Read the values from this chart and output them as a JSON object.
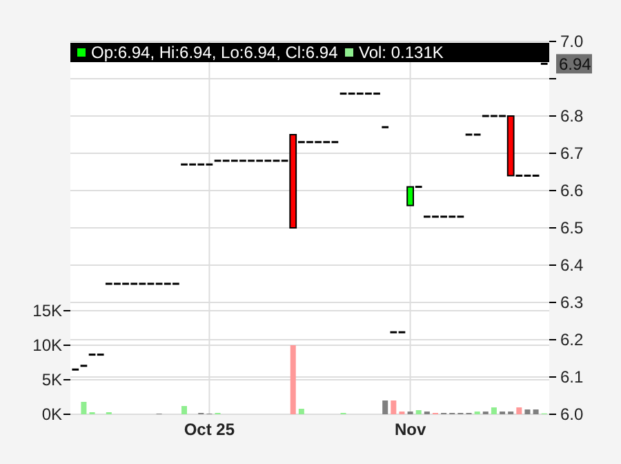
{
  "chart_data": {
    "type": "candlestick",
    "categories": [
      null,
      null,
      null,
      null,
      null,
      null,
      null,
      null,
      null,
      null,
      null,
      null,
      null,
      null,
      null,
      null,
      "Oct 25",
      null,
      null,
      null,
      null,
      null,
      null,
      null,
      null,
      null,
      null,
      null,
      null,
      null,
      null,
      null,
      null,
      null,
      null,
      null,
      null,
      null,
      null,
      null,
      "Nov",
      null,
      null,
      null,
      null,
      null,
      null,
      null,
      null,
      null,
      null,
      null,
      null,
      null,
      null,
      null,
      null
    ],
    "ohlc": [
      [
        6.12,
        6.12,
        6.12,
        6.12
      ],
      [
        6.13,
        6.13,
        6.13,
        6.13
      ],
      [
        6.16,
        6.16,
        6.16,
        6.16
      ],
      [
        6.16,
        6.16,
        6.16,
        6.16
      ],
      [
        6.35,
        6.35,
        6.35,
        6.35
      ],
      [
        6.35,
        6.35,
        6.35,
        6.35
      ],
      [
        6.35,
        6.35,
        6.35,
        6.35
      ],
      [
        6.35,
        6.35,
        6.35,
        6.35
      ],
      [
        6.35,
        6.35,
        6.35,
        6.35
      ],
      [
        6.35,
        6.35,
        6.35,
        6.35
      ],
      [
        6.35,
        6.35,
        6.35,
        6.35
      ],
      [
        6.35,
        6.35,
        6.35,
        6.35
      ],
      [
        6.35,
        6.35,
        6.35,
        6.35
      ],
      [
        6.67,
        6.67,
        6.67,
        6.67
      ],
      [
        6.67,
        6.67,
        6.67,
        6.67
      ],
      [
        6.67,
        6.67,
        6.67,
        6.67
      ],
      [
        6.67,
        6.67,
        6.67,
        6.67
      ],
      [
        6.68,
        6.68,
        6.68,
        6.68
      ],
      [
        6.68,
        6.68,
        6.68,
        6.68
      ],
      [
        6.68,
        6.68,
        6.68,
        6.68
      ],
      [
        6.68,
        6.68,
        6.68,
        6.68
      ],
      [
        6.68,
        6.68,
        6.68,
        6.68
      ],
      [
        6.68,
        6.68,
        6.68,
        6.68
      ],
      [
        6.68,
        6.68,
        6.68,
        6.68
      ],
      [
        6.68,
        6.68,
        6.68,
        6.68
      ],
      [
        6.68,
        6.68,
        6.68,
        6.68
      ],
      [
        6.75,
        6.75,
        6.5,
        6.5
      ],
      [
        6.73,
        6.73,
        6.73,
        6.73
      ],
      [
        6.73,
        6.73,
        6.73,
        6.73
      ],
      [
        6.73,
        6.73,
        6.73,
        6.73
      ],
      [
        6.73,
        6.73,
        6.73,
        6.73
      ],
      [
        6.73,
        6.73,
        6.73,
        6.73
      ],
      [
        6.86,
        6.86,
        6.86,
        6.86
      ],
      [
        6.86,
        6.86,
        6.86,
        6.86
      ],
      [
        6.86,
        6.86,
        6.86,
        6.86
      ],
      [
        6.86,
        6.86,
        6.86,
        6.86
      ],
      [
        6.86,
        6.86,
        6.86,
        6.86
      ],
      [
        6.77,
        6.77,
        6.77,
        6.77
      ],
      [
        6.22,
        6.22,
        6.22,
        6.22
      ],
      [
        6.22,
        6.22,
        6.22,
        6.22
      ],
      [
        6.56,
        6.61,
        6.56,
        6.61
      ],
      [
        6.61,
        6.61,
        6.61,
        6.61
      ],
      [
        6.53,
        6.53,
        6.53,
        6.53
      ],
      [
        6.53,
        6.53,
        6.53,
        6.53
      ],
      [
        6.53,
        6.53,
        6.53,
        6.53
      ],
      [
        6.53,
        6.53,
        6.53,
        6.53
      ],
      [
        6.53,
        6.53,
        6.53,
        6.53
      ],
      [
        6.75,
        6.75,
        6.75,
        6.75
      ],
      [
        6.75,
        6.75,
        6.75,
        6.75
      ],
      [
        6.8,
        6.8,
        6.8,
        6.8
      ],
      [
        6.8,
        6.8,
        6.8,
        6.8
      ],
      [
        6.8,
        6.8,
        6.8,
        6.8
      ],
      [
        6.8,
        6.8,
        6.64,
        6.64
      ],
      [
        6.64,
        6.64,
        6.64,
        6.64
      ],
      [
        6.64,
        6.64,
        6.64,
        6.64
      ],
      [
        6.64,
        6.64,
        6.64,
        6.64
      ],
      [
        6.94,
        6.94,
        6.94,
        6.94
      ]
    ],
    "colors": [
      "#000000",
      "#000000",
      "#000000",
      "#000000",
      "#000000",
      "#000000",
      "#000000",
      "#000000",
      "#000000",
      "#000000",
      "#000000",
      "#000000",
      "#000000",
      "#000000",
      "#000000",
      "#000000",
      "#000000",
      "#000000",
      "#000000",
      "#000000",
      "#000000",
      "#000000",
      "#000000",
      "#000000",
      "#000000",
      "#000000",
      "#ff0000",
      "#000000",
      "#000000",
      "#000000",
      "#000000",
      "#000000",
      "#000000",
      "#000000",
      "#000000",
      "#000000",
      "#000000",
      "#000000",
      "#000000",
      "#000000",
      "#00ff00",
      "#000000",
      "#000000",
      "#000000",
      "#000000",
      "#000000",
      "#000000",
      "#000000",
      "#000000",
      "#000000",
      "#000000",
      "#000000",
      "#ff0000",
      "#000000",
      "#000000",
      "#000000",
      "#000000"
    ],
    "series": [
      {
        "type": "bar",
        "axis": "y2",
        "values": [
          null,
          1.8,
          0.3,
          null,
          0.3,
          null,
          null,
          null,
          null,
          null,
          0.1,
          null,
          null,
          1.2,
          null,
          0.2,
          0.1,
          0.2,
          null,
          null,
          null,
          null,
          null,
          null,
          null,
          null,
          10,
          0.8,
          null,
          null,
          null,
          null,
          0.2,
          null,
          null,
          null,
          null,
          2.0,
          2.0,
          0.4,
          0.4,
          0.6,
          0.4,
          0.2,
          0.2,
          0.2,
          0.2,
          0.2,
          0.4,
          0.4,
          1.0,
          0.4,
          0.4,
          1.0,
          0.7,
          0.7,
          0.131
        ],
        "colors": [
          null,
          "#90ee90",
          "#90ee90",
          null,
          "#90ee90",
          null,
          null,
          null,
          null,
          null,
          "#808080",
          null,
          null,
          "#90ee90",
          null,
          "#808080",
          "#808080",
          "#90ee90",
          null,
          null,
          null,
          null,
          null,
          null,
          null,
          null,
          "#ff9999",
          "#90ee90",
          null,
          null,
          null,
          null,
          "#90ee90",
          null,
          null,
          null,
          null,
          "#808080",
          "#ff9999",
          "#ff9999",
          "#808080",
          "#90ee90",
          "#808080",
          "#ff9999",
          "#808080",
          "#808080",
          "#808080",
          "#808080",
          "#90ee90",
          "#808080",
          "#90ee90",
          "#808080",
          "#808080",
          "#ff9999",
          "#808080",
          "#808080",
          "#90ee90"
        ]
      }
    ],
    "ylim": [
      6.0,
      7.0
    ],
    "yticks": [
      {
        "value": 6.0,
        "label": "6.0"
      },
      {
        "value": 6.1,
        "label": "6.1"
      },
      {
        "value": 6.2,
        "label": "6.2"
      },
      {
        "value": 6.3,
        "label": "6.3"
      },
      {
        "value": 6.4,
        "label": "6.4"
      },
      {
        "value": 6.5,
        "label": "6.5"
      },
      {
        "value": 6.6,
        "label": "6.6"
      },
      {
        "value": 6.7,
        "label": "6.7"
      },
      {
        "value": 6.8,
        "label": "6.8"
      },
      {
        "value": 6.9,
        "label": null
      },
      {
        "value": 7.0,
        "label": "7.0"
      }
    ],
    "y2lim": [
      0,
      54
    ],
    "y2ticks": [
      {
        "value": 0,
        "label": "0K"
      },
      {
        "value": 5,
        "label": "5K"
      },
      {
        "value": 10,
        "label": "10K"
      },
      {
        "value": 15,
        "label": "15K"
      }
    ],
    "grid": true,
    "annotations": [
      "Op:6.94, Hi:6.94, Lo:6.94, Cl:6.94",
      "Vol: 0.131K",
      "6.94"
    ]
  }
}
